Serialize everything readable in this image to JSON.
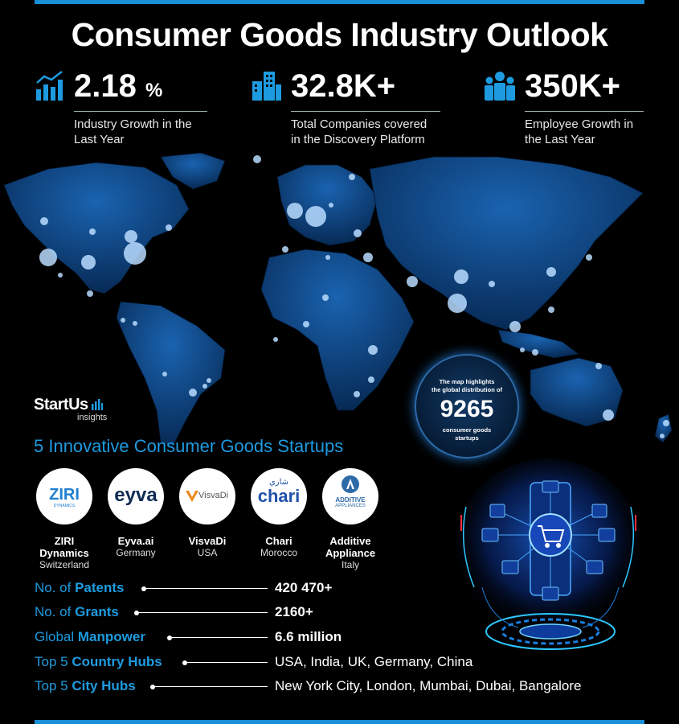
{
  "title": "Consumer Goods Industry Outlook",
  "stats": [
    {
      "value": "2.18",
      "unit": "%",
      "label_line1": "Industry Growth in the",
      "label_line2": "Last Year",
      "icon": "bar-chart-icon"
    },
    {
      "value": "32.8K+",
      "label_line1": "Total Companies covered",
      "label_line2": "in the Discovery Platform",
      "icon": "buildings-icon"
    },
    {
      "value": "350K+",
      "label_line1": "Employee Growth in",
      "label_line2": "the Last Year",
      "icon": "people-icon"
    }
  ],
  "badge": {
    "line1": "The map highlights",
    "line2": "the global distribution of",
    "count": "9265",
    "line3": "consumer goods",
    "line4": "startups"
  },
  "logo": {
    "brand": "StartUs",
    "sub": "insights"
  },
  "section_title": "5 Innovative Consumer Goods Startups",
  "startups": [
    {
      "name1": "ZIRI",
      "name2": "Dynamics",
      "country": "Switzerland",
      "logo_text": "ZIRI",
      "logo_sub": "DYNAMICS"
    },
    {
      "name1": "Eyva.ai",
      "name2": "",
      "country": "Germany",
      "logo_text": "eyva"
    },
    {
      "name1": "VisvaDi",
      "name2": "",
      "country": "USA",
      "logo_text": "VisvaDi"
    },
    {
      "name1": "Chari",
      "name2": "",
      "country": "Morocco",
      "logo_text": "chari",
      "logo_arabic": "شاري"
    },
    {
      "name1": "Additive",
      "name2": "Appliance",
      "country": "Italy",
      "logo_text": "ADDITIVE",
      "logo_sub": "APPLIANCES"
    }
  ],
  "facts": [
    {
      "prefix": "No. of ",
      "bold": "Patents",
      "value": "420 470+",
      "value_bold": true
    },
    {
      "prefix": "No. of ",
      "bold": "Grants",
      "value": "2160+",
      "value_bold": true
    },
    {
      "prefix": "Global ",
      "bold": "Manpower",
      "value": "6.6 million",
      "value_bold": true
    },
    {
      "prefix": "Top 5 ",
      "bold": "Country Hubs",
      "value": "USA, India, UK, Germany, China",
      "value_bold": false
    },
    {
      "prefix": "Top 5 ",
      "bold": "City Hubs",
      "value": "New York City, London, Mumbai, Dubai, Bangalore",
      "value_bold": false
    }
  ],
  "colors": {
    "accent": "#1e9be0",
    "bar": "#1a8fd6",
    "map": "#0d4c8e",
    "background": "#000000"
  }
}
